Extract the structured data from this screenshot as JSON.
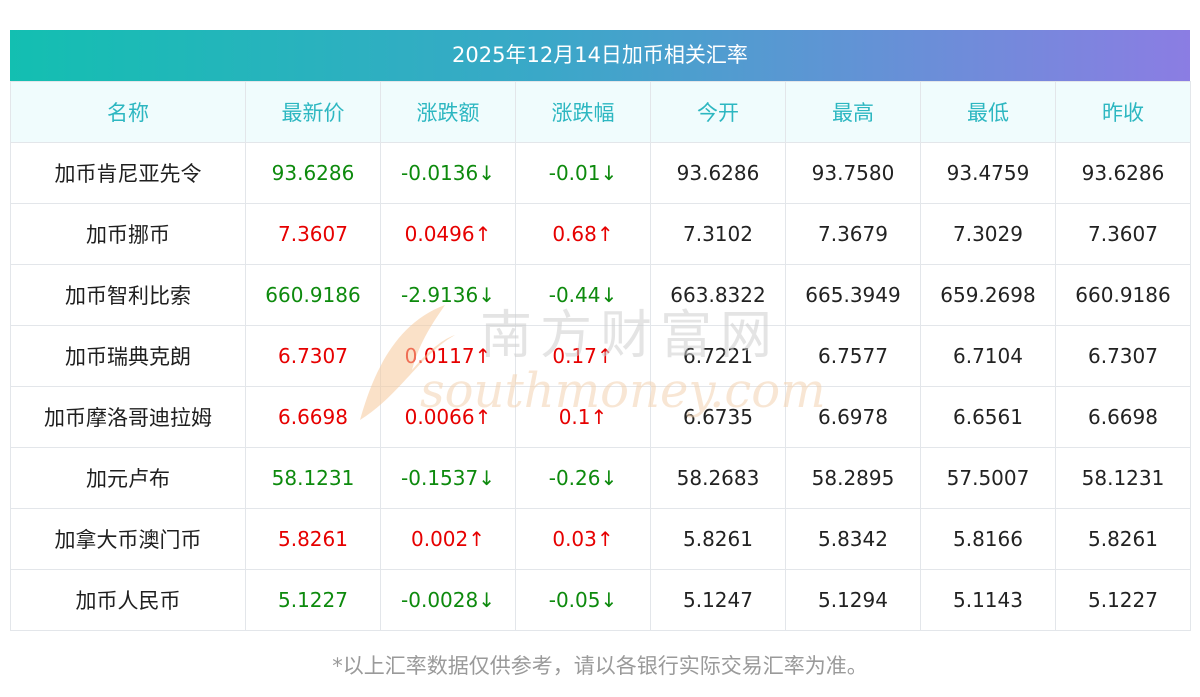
{
  "title": "2025年12月14日加币相关汇率",
  "columns": [
    "名称",
    "最新价",
    "涨跌额",
    "涨跌幅",
    "今开",
    "最高",
    "最低",
    "昨收"
  ],
  "rows": [
    {
      "name": "加币肯尼亚先令",
      "latest": "93.6286",
      "change": "-0.0136↓",
      "change_pct": "-0.01↓",
      "open": "93.6286",
      "high": "93.7580",
      "low": "93.4759",
      "prev_close": "93.6286",
      "trend": "down"
    },
    {
      "name": "加币挪币",
      "latest": "7.3607",
      "change": "0.0496↑",
      "change_pct": "0.68↑",
      "open": "7.3102",
      "high": "7.3679",
      "low": "7.3029",
      "prev_close": "7.3607",
      "trend": "up"
    },
    {
      "name": "加币智利比索",
      "latest": "660.9186",
      "change": "-2.9136↓",
      "change_pct": "-0.44↓",
      "open": "663.8322",
      "high": "665.3949",
      "low": "659.2698",
      "prev_close": "660.9186",
      "trend": "down"
    },
    {
      "name": "加币瑞典克朗",
      "latest": "6.7307",
      "change": "0.0117↑",
      "change_pct": "0.17↑",
      "open": "6.7221",
      "high": "6.7577",
      "low": "6.7104",
      "prev_close": "6.7307",
      "trend": "up"
    },
    {
      "name": "加币摩洛哥迪拉姆",
      "latest": "6.6698",
      "change": "0.0066↑",
      "change_pct": "0.1↑",
      "open": "6.6735",
      "high": "6.6978",
      "low": "6.6561",
      "prev_close": "6.6698",
      "trend": "up"
    },
    {
      "name": "加元卢布",
      "latest": "58.1231",
      "change": "-0.1537↓",
      "change_pct": "-0.26↓",
      "open": "58.2683",
      "high": "58.2895",
      "low": "57.5007",
      "prev_close": "58.1231",
      "trend": "down"
    },
    {
      "name": "加拿大币澳门币",
      "latest": "5.8261",
      "change": "0.002↑",
      "change_pct": "0.03↑",
      "open": "5.8261",
      "high": "5.8342",
      "low": "5.8166",
      "prev_close": "5.8261",
      "trend": "up"
    },
    {
      "name": "加币人民币",
      "latest": "5.1227",
      "change": "-0.0028↓",
      "change_pct": "-0.05↓",
      "open": "5.1247",
      "high": "5.1294",
      "low": "5.1143",
      "prev_close": "5.1227",
      "trend": "down"
    }
  ],
  "footnote": "*以上汇率数据仅供参考，请以各银行实际交易汇率为准。",
  "watermark": {
    "cn": "南方财富网",
    "en": "southmoney.com"
  },
  "colors": {
    "up": "#e60000",
    "down": "#0d8a0d",
    "header_text": "#2db7c1"
  }
}
